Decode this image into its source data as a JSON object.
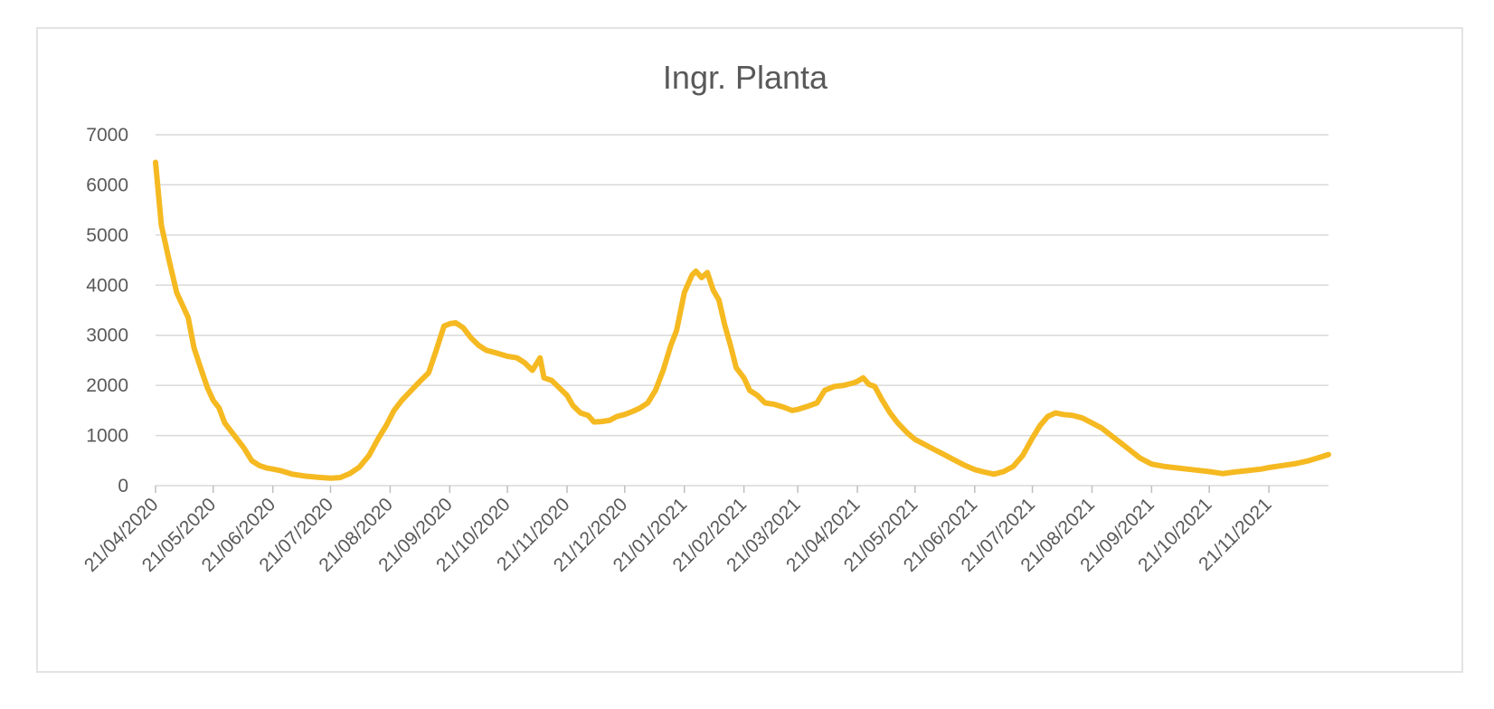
{
  "chart_data": {
    "type": "line",
    "title": "Ingr. Planta",
    "xlabel": "",
    "ylabel": "",
    "ylim": [
      0,
      7000
    ],
    "yticks": [
      0,
      1000,
      2000,
      3000,
      4000,
      5000,
      6000,
      7000
    ],
    "x_range": [
      "2020-04-21",
      "2021-12-22"
    ],
    "xtick_labels": [
      "21/04/2020",
      "21/05/2020",
      "21/06/2020",
      "21/07/2020",
      "21/08/2020",
      "21/09/2020",
      "21/10/2020",
      "21/11/2020",
      "21/12/2020",
      "21/01/2021",
      "21/02/2021",
      "21/03/2021",
      "21/04/2021",
      "21/05/2021",
      "21/06/2021",
      "21/07/2021",
      "21/08/2021",
      "21/09/2021",
      "21/10/2021",
      "21/11/2021"
    ],
    "xtick_dates": [
      "2020-04-21",
      "2020-05-21",
      "2020-06-21",
      "2020-07-21",
      "2020-08-21",
      "2020-09-21",
      "2020-10-21",
      "2020-11-21",
      "2020-12-21",
      "2021-01-21",
      "2021-02-21",
      "2021-03-21",
      "2021-04-21",
      "2021-05-21",
      "2021-06-21",
      "2021-07-21",
      "2021-08-21",
      "2021-09-21",
      "2021-10-21",
      "2021-11-21"
    ],
    "grid": true,
    "legend": "none",
    "series": [
      {
        "color": "#F5B921",
        "points": [
          [
            "2020-04-21",
            6450
          ],
          [
            "2020-04-24",
            5200
          ],
          [
            "2020-04-28",
            4500
          ],
          [
            "2020-05-02",
            3850
          ],
          [
            "2020-05-05",
            3600
          ],
          [
            "2020-05-08",
            3350
          ],
          [
            "2020-05-11",
            2750
          ],
          [
            "2020-05-14",
            2400
          ],
          [
            "2020-05-18",
            1950
          ],
          [
            "2020-05-21",
            1700
          ],
          [
            "2020-05-24",
            1550
          ],
          [
            "2020-05-27",
            1250
          ],
          [
            "2020-05-31",
            1050
          ],
          [
            "2020-06-03",
            900
          ],
          [
            "2020-06-06",
            750
          ],
          [
            "2020-06-10",
            500
          ],
          [
            "2020-06-14",
            400
          ],
          [
            "2020-06-18",
            350
          ],
          [
            "2020-06-21",
            330
          ],
          [
            "2020-06-25",
            300
          ],
          [
            "2020-07-01",
            230
          ],
          [
            "2020-07-08",
            190
          ],
          [
            "2020-07-15",
            165
          ],
          [
            "2020-07-21",
            150
          ],
          [
            "2020-07-26",
            160
          ],
          [
            "2020-07-31",
            240
          ],
          [
            "2020-08-05",
            370
          ],
          [
            "2020-08-10",
            600
          ],
          [
            "2020-08-15",
            950
          ],
          [
            "2020-08-19",
            1200
          ],
          [
            "2020-08-23",
            1500
          ],
          [
            "2020-08-27",
            1700
          ],
          [
            "2020-09-01",
            1900
          ],
          [
            "2020-09-06",
            2100
          ],
          [
            "2020-09-10",
            2250
          ],
          [
            "2020-09-14",
            2700
          ],
          [
            "2020-09-18",
            3180
          ],
          [
            "2020-09-21",
            3230
          ],
          [
            "2020-09-24",
            3250
          ],
          [
            "2020-09-28",
            3150
          ],
          [
            "2020-10-02",
            2950
          ],
          [
            "2020-10-06",
            2800
          ],
          [
            "2020-10-10",
            2700
          ],
          [
            "2020-10-15",
            2650
          ],
          [
            "2020-10-21",
            2580
          ],
          [
            "2020-10-26",
            2550
          ],
          [
            "2020-10-30",
            2450
          ],
          [
            "2020-11-03",
            2300
          ],
          [
            "2020-11-07",
            2550
          ],
          [
            "2020-11-09",
            2150
          ],
          [
            "2020-11-13",
            2100
          ],
          [
            "2020-11-17",
            1950
          ],
          [
            "2020-11-21",
            1800
          ],
          [
            "2020-11-24",
            1600
          ],
          [
            "2020-11-28",
            1450
          ],
          [
            "2020-12-02",
            1400
          ],
          [
            "2020-12-05",
            1270
          ],
          [
            "2020-12-09",
            1280
          ],
          [
            "2020-12-13",
            1300
          ],
          [
            "2020-12-17",
            1380
          ],
          [
            "2020-12-21",
            1420
          ],
          [
            "2020-12-25",
            1480
          ],
          [
            "2020-12-29",
            1550
          ],
          [
            "2021-01-02",
            1650
          ],
          [
            "2021-01-06",
            1900
          ],
          [
            "2021-01-10",
            2300
          ],
          [
            "2021-01-14",
            2800
          ],
          [
            "2021-01-17",
            3100
          ],
          [
            "2021-01-21",
            3850
          ],
          [
            "2021-01-25",
            4200
          ],
          [
            "2021-01-27",
            4280
          ],
          [
            "2021-01-30",
            4150
          ],
          [
            "2021-02-02",
            4250
          ],
          [
            "2021-02-05",
            3900
          ],
          [
            "2021-02-08",
            3700
          ],
          [
            "2021-02-11",
            3200
          ],
          [
            "2021-02-14",
            2800
          ],
          [
            "2021-02-17",
            2350
          ],
          [
            "2021-02-21",
            2150
          ],
          [
            "2021-02-24",
            1900
          ],
          [
            "2021-02-28",
            1800
          ],
          [
            "2021-03-04",
            1650
          ],
          [
            "2021-03-09",
            1620
          ],
          [
            "2021-03-14",
            1560
          ],
          [
            "2021-03-18",
            1500
          ],
          [
            "2021-03-21",
            1520
          ],
          [
            "2021-03-26",
            1580
          ],
          [
            "2021-03-31",
            1650
          ],
          [
            "2021-04-04",
            1900
          ],
          [
            "2021-04-09",
            1980
          ],
          [
            "2021-04-14",
            2000
          ],
          [
            "2021-04-19",
            2050
          ],
          [
            "2021-04-21",
            2080
          ],
          [
            "2021-04-24",
            2150
          ],
          [
            "2021-04-27",
            2020
          ],
          [
            "2021-04-30",
            1980
          ],
          [
            "2021-05-04",
            1700
          ],
          [
            "2021-05-08",
            1450
          ],
          [
            "2021-05-12",
            1250
          ],
          [
            "2021-05-17",
            1050
          ],
          [
            "2021-05-21",
            920
          ],
          [
            "2021-05-26",
            820
          ],
          [
            "2021-05-31",
            720
          ],
          [
            "2021-06-05",
            620
          ],
          [
            "2021-06-10",
            520
          ],
          [
            "2021-06-15",
            420
          ],
          [
            "2021-06-21",
            320
          ],
          [
            "2021-06-26",
            270
          ],
          [
            "2021-07-01",
            230
          ],
          [
            "2021-07-06",
            280
          ],
          [
            "2021-07-11",
            380
          ],
          [
            "2021-07-16",
            600
          ],
          [
            "2021-07-21",
            950
          ],
          [
            "2021-07-25",
            1200
          ],
          [
            "2021-07-29",
            1380
          ],
          [
            "2021-08-02",
            1450
          ],
          [
            "2021-08-06",
            1420
          ],
          [
            "2021-08-11",
            1400
          ],
          [
            "2021-08-16",
            1350
          ],
          [
            "2021-08-21",
            1250
          ],
          [
            "2021-08-26",
            1150
          ],
          [
            "2021-08-31",
            1000
          ],
          [
            "2021-09-05",
            850
          ],
          [
            "2021-09-10",
            700
          ],
          [
            "2021-09-15",
            550
          ],
          [
            "2021-09-21",
            430
          ],
          [
            "2021-09-28",
            380
          ],
          [
            "2021-10-05",
            350
          ],
          [
            "2021-10-12",
            320
          ],
          [
            "2021-10-21",
            280
          ],
          [
            "2021-10-28",
            240
          ],
          [
            "2021-11-03",
            270
          ],
          [
            "2021-11-10",
            300
          ],
          [
            "2021-11-17",
            330
          ],
          [
            "2021-11-21",
            360
          ],
          [
            "2021-11-28",
            400
          ],
          [
            "2021-12-05",
            440
          ],
          [
            "2021-12-12",
            500
          ],
          [
            "2021-12-18",
            570
          ],
          [
            "2021-12-22",
            620
          ]
        ]
      }
    ]
  }
}
